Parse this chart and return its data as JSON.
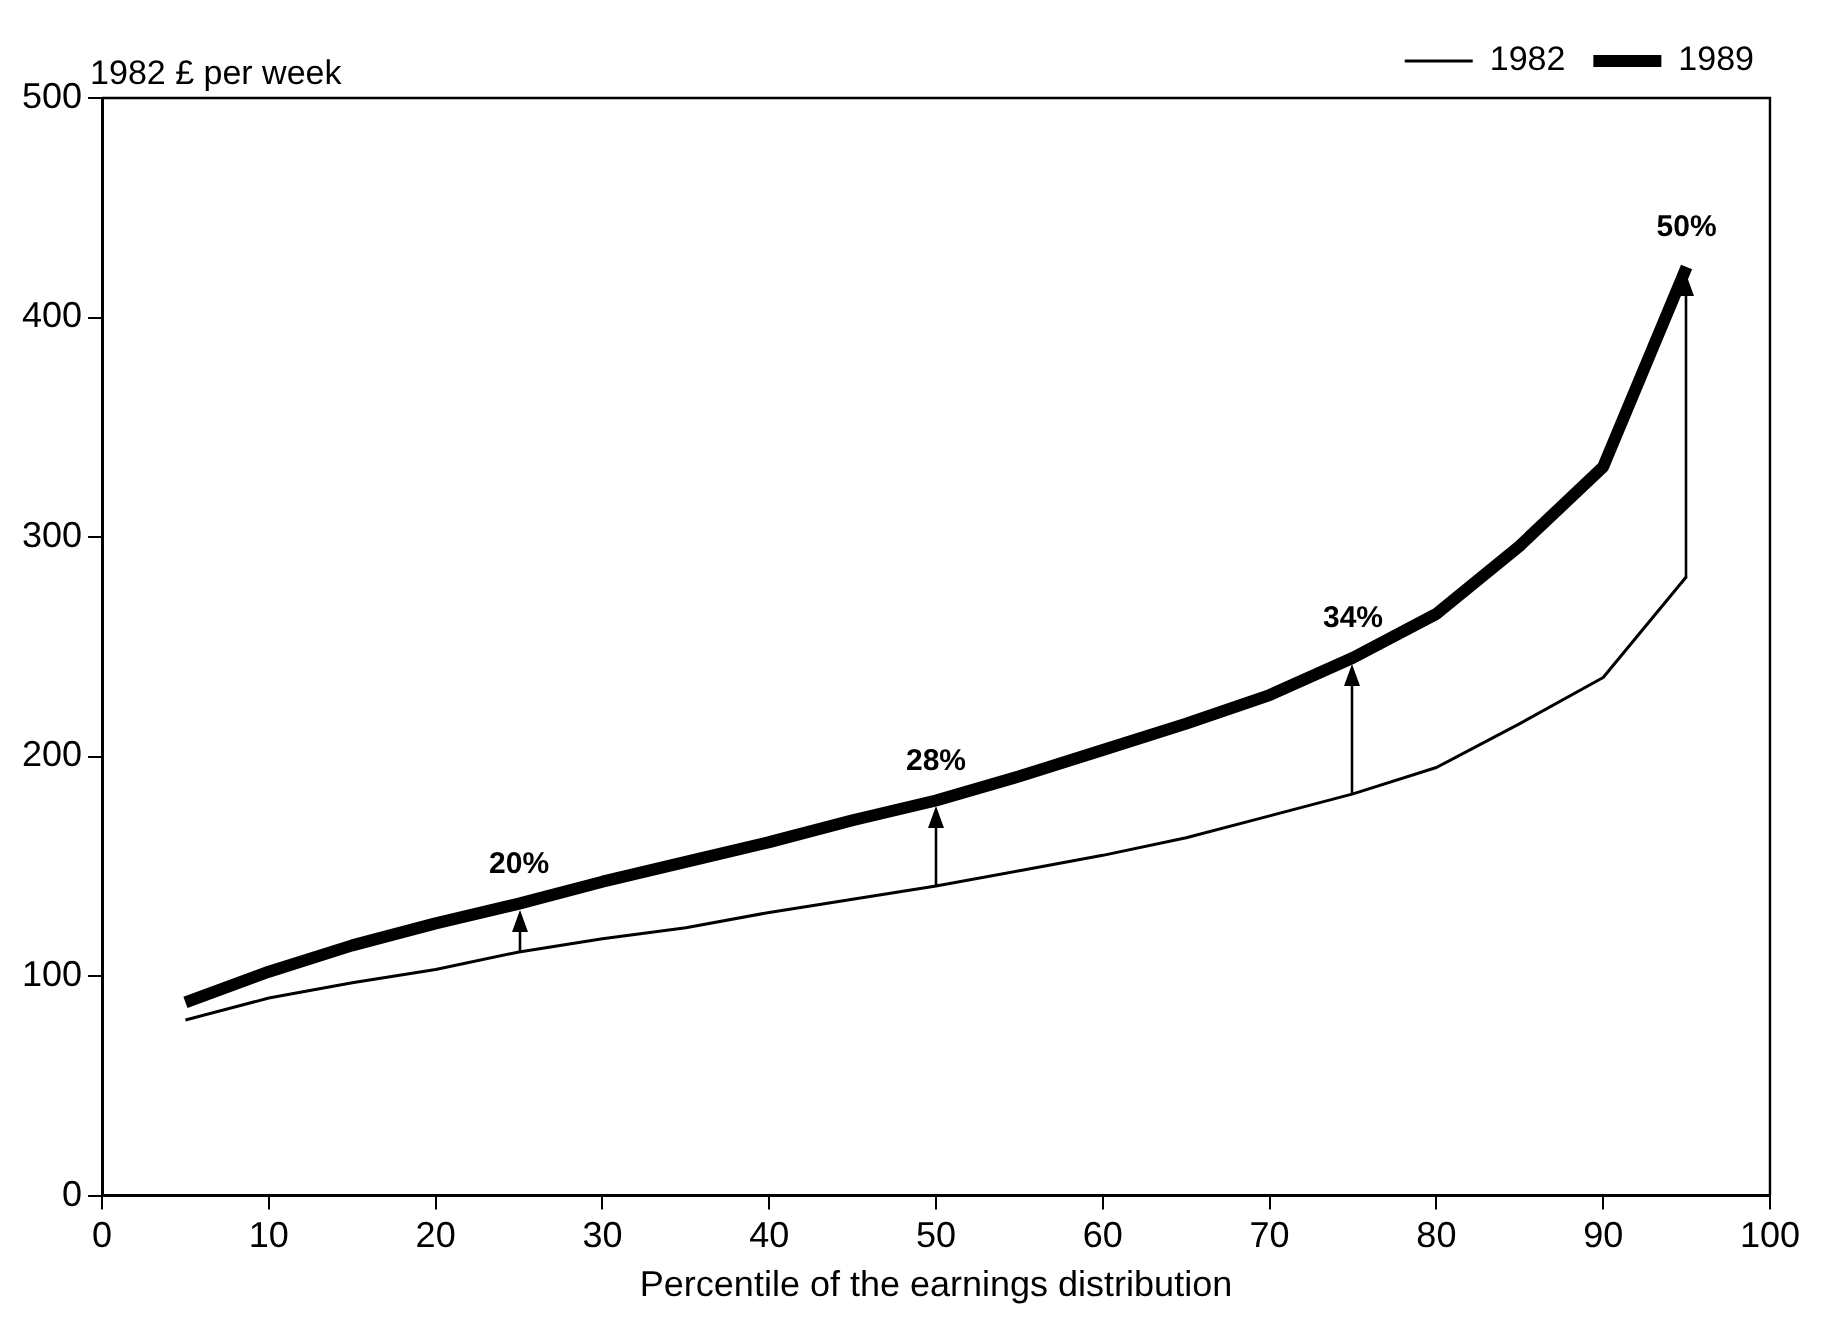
{
  "chart_data": {
    "type": "line",
    "xlabel": "Percentile of the earnings distribution",
    "ylabel": "1982 £ per week",
    "x": [
      5,
      10,
      15,
      20,
      25,
      30,
      35,
      40,
      45,
      50,
      55,
      60,
      65,
      70,
      75,
      80,
      85,
      90,
      95
    ],
    "series": [
      {
        "name": "1982",
        "color": "#000000",
        "values": [
          80,
          90,
          97,
          103,
          111,
          117,
          122,
          129,
          135,
          141,
          148,
          155,
          163,
          173,
          183,
          195,
          215,
          236,
          282
        ]
      },
      {
        "name": "1989",
        "color": "#000000",
        "values": [
          88,
          102,
          114,
          124,
          133,
          143,
          152,
          161,
          171,
          180,
          191,
          203,
          215,
          228,
          245,
          265,
          296,
          332,
          423
        ]
      }
    ],
    "xlim": [
      0,
      100
    ],
    "xticks": [
      0,
      10,
      20,
      30,
      40,
      50,
      60,
      70,
      80,
      90,
      100
    ],
    "ylim": [
      0,
      500
    ],
    "yticks": [
      0,
      100,
      200,
      300,
      400,
      500
    ],
    "grid": false,
    "legend": "top right",
    "marker": "none",
    "line_style": "solid",
    "annotations": [
      {
        "text": "20%",
        "x": 25,
        "y": 133
      },
      {
        "text": "28%",
        "x": 50,
        "y": 180
      },
      {
        "text": "34%",
        "x": 75,
        "y": 245
      },
      {
        "text": "50%",
        "x": 95,
        "y": 423
      }
    ]
  }
}
